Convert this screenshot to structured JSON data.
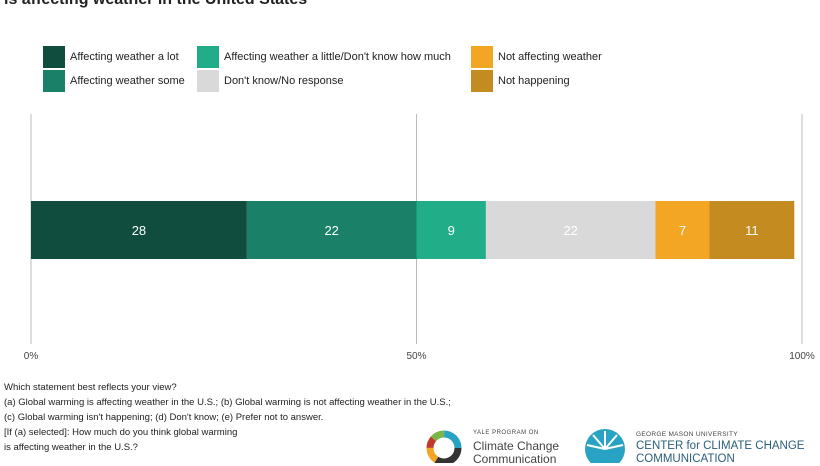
{
  "chart_data": {
    "type": "bar",
    "orientation": "horizontal-stacked",
    "title": "is affecting weather in the United States",
    "categories": [
      ""
    ],
    "series": [
      {
        "name": "Affecting weather a lot",
        "values": [
          28
        ],
        "color": "#114d3e"
      },
      {
        "name": "Affecting weather some",
        "values": [
          22
        ],
        "color": "#1a8068"
      },
      {
        "name": "Affecting weather a little/Don't know how much",
        "values": [
          9
        ],
        "color": "#20ad87"
      },
      {
        "name": "Don't know/No response",
        "values": [
          22
        ],
        "color": "#d9d9d9"
      },
      {
        "name": "Not affecting weather",
        "values": [
          7
        ],
        "color": "#f2a623"
      },
      {
        "name": "Not happening",
        "values": [
          11
        ],
        "color": "#c38b20"
      }
    ],
    "x_ticks": [
      "0%",
      "50%",
      "100%"
    ],
    "xlim": [
      0,
      100
    ],
    "legend_placement": "top"
  },
  "notes": [
    "Which statement best reflects your view?",
    "(a) Global warming is affecting weather in the U.S.; (b) Global warming is not affecting weather in the U.S.;",
    "(c) Global warming isn't happening; (d) Don't know; (e) Prefer not to answer.",
    "[If (a) selected]: How much do you think global warming",
    "is affecting weather in the U.S.?"
  ],
  "logos": {
    "ycc": {
      "small": "YALE PROGRAM ON",
      "line1": "Climate Change",
      "line2": "Communication"
    },
    "cccc": {
      "small": "GEORGE MASON UNIVERSITY",
      "line1": "CENTER for CLIMATE CHANGE",
      "line2": "COMMUNICATION"
    }
  }
}
